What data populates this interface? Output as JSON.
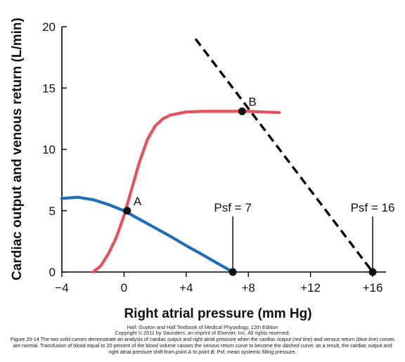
{
  "chart_data": {
    "type": "line",
    "title": "",
    "xlabel": "Right atrial pressure (mm Hg)",
    "ylabel": "Cardiac output and venous return (L/min)",
    "xlim": [
      -4,
      16
    ],
    "ylim": [
      0,
      20
    ],
    "xticks": [
      -4,
      0,
      4,
      8,
      12,
      16
    ],
    "xtick_labels": [
      "−4",
      "0",
      "+4",
      "+8",
      "+12",
      "+16"
    ],
    "yticks": [
      0,
      5,
      10,
      15,
      20
    ],
    "ytick_labels": [
      "0",
      "5",
      "10",
      "15",
      "20"
    ],
    "grid": false,
    "series": [
      {
        "color": "#e8505b",
        "style": "solid",
        "x": [
          -2.0,
          -1.5,
          -1.0,
          -0.5,
          0.0,
          0.5,
          1.0,
          1.5,
          2.0,
          2.5,
          3.0,
          4.0,
          5.0,
          6.0,
          7.0,
          8.0,
          9.0,
          10.0
        ],
        "y": [
          0.0,
          0.5,
          1.5,
          2.8,
          4.6,
          6.8,
          9.0,
          10.8,
          11.9,
          12.5,
          12.8,
          13.05,
          13.1,
          13.1,
          13.1,
          13.1,
          13.05,
          13.0
        ]
      },
      {
        "color": "#1f6fb8",
        "style": "solid",
        "x": [
          -4.0,
          -3.0,
          -2.0,
          -1.0,
          0.0,
          1.0,
          2.0,
          3.0,
          4.0,
          5.0,
          6.0,
          7.0
        ],
        "y": [
          6.0,
          6.1,
          5.9,
          5.5,
          5.0,
          4.3,
          3.6,
          2.9,
          2.15,
          1.45,
          0.72,
          0.0
        ]
      },
      {
        "color": "#000000",
        "style": "dashed",
        "x": [
          4.6,
          16.0
        ],
        "y": [
          19.0,
          0.0
        ]
      }
    ],
    "points": [
      {
        "x": 0.2,
        "y": 5.0,
        "label": "A"
      },
      {
        "x": 7.6,
        "y": 13.1,
        "label": "B"
      },
      {
        "x": 7.0,
        "y": 0.0,
        "label": ""
      },
      {
        "x": 16.0,
        "y": 0.0,
        "label": ""
      }
    ],
    "annotations": [
      {
        "text": "Psf = 7",
        "x": 7.0,
        "y_top": 5.0
      },
      {
        "text": "Psf = 16",
        "x": 16.0,
        "y_top": 5.0
      }
    ]
  },
  "credits": {
    "line1": "Hall: Guyton and Hall Textbook of Medical Physiology, 12th Edition",
    "line2": "Copyright © 2011 by Saunders, an imprint of Elsevier, Inc. All rights reserved."
  },
  "caption": {
    "p1": "Figure 20-14 The two ",
    "i1": "solid curves",
    "p2": " demonstrate an analysis of cardiac output and right atrial pressure when the cardiac output (",
    "i2": "red line",
    "p3": ") and venous return (",
    "i3": "blue line",
    "p4": ") curves are normal. Transfusion of blood equal to 20 percent of the blood volume causes the venous return curve to become the ",
    "i4": "dashed curve",
    "p5": "; as a result, the cardiac output and right atrial pressure shift from point ",
    "i5": "A",
    "p6": " to point ",
    "i6": "B",
    "p7": ". Psf, mean systemic filling pressure."
  }
}
